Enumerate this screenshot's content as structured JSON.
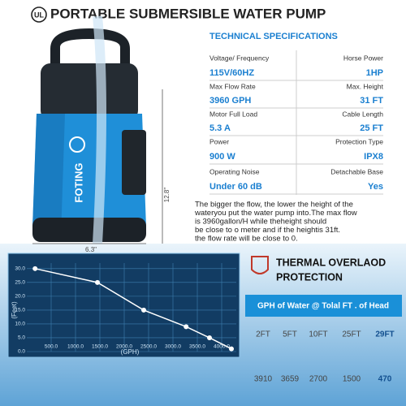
{
  "header": {
    "logo": "UL",
    "title": "PORTABLE SUBMERSIBLE WATER PUMP"
  },
  "product": {
    "brand": "FOTING",
    "height": "12.8\"",
    "width": "6.3\""
  },
  "specs": {
    "heading": "TECHNICAL SPECIFICATIONS",
    "rows": [
      [
        "Voltage/ Frequency",
        "Horse Power"
      ],
      [
        "115V/60HZ",
        "1HP"
      ],
      [
        "Max Flow Rate",
        "Max. Height"
      ],
      [
        "3960 GPH",
        "31 FT"
      ],
      [
        "Motor Full Load",
        "Cable Length"
      ],
      [
        "5.3 A",
        "25 FT"
      ],
      [
        "Power",
        "Protection Type"
      ],
      [
        "900 W",
        "IPX8"
      ],
      [
        "Operating Noise",
        "Detachable Base"
      ],
      [
        "Under 60 dB",
        "Yes"
      ]
    ]
  },
  "note": {
    "lines": [
      "The bigger the flow, the lower the height of the",
      "wateryou put the water pump into.The max flow",
      "is 3960gallon/H while theheight should",
      "be close to o meter and if the heightis 31ft.",
      "the flow rate will be close to 0."
    ]
  },
  "chart_data": {
    "type": "line",
    "x_label": "(GPH)",
    "y_label": "(Feet)",
    "x": [
      170,
      1450,
      2400,
      3270,
      3750,
      4200
    ],
    "values": [
      30,
      25,
      15,
      9,
      5,
      1
    ],
    "color": "#ffffff",
    "xlim": [
      0,
      4300
    ],
    "ylim": [
      0,
      32
    ],
    "xticks": [
      {
        "value": 500,
        "label": "500.0"
      },
      {
        "value": 1000,
        "label": "1000.0"
      },
      {
        "value": 1500,
        "label": "1500.0"
      },
      {
        "value": 2000,
        "label": "2000.0"
      },
      {
        "value": 2500,
        "label": "2500.0"
      },
      {
        "value": 3000,
        "label": "3000.0"
      },
      {
        "value": 3500,
        "label": "3500.0"
      },
      {
        "value": 4000,
        "label": "4000.0"
      }
    ],
    "yticks": [
      {
        "value": 0,
        "label": "0.0"
      },
      {
        "value": 5,
        "label": "5.0"
      },
      {
        "value": 10,
        "label": "10.0"
      },
      {
        "value": 15,
        "label": "15.0"
      },
      {
        "value": 20,
        "label": "20.0"
      },
      {
        "value": 25,
        "label": "25.0"
      },
      {
        "value": 30,
        "label": "30.0"
      }
    ],
    "grid": true
  },
  "thermal": {
    "lines": [
      "THERMAL OVERLAOD",
      "PROTECTION"
    ]
  },
  "table": {
    "header": "GPH of Water @ Tolal FT . of Head",
    "rows": [
      [
        "2FT",
        "5FT",
        "10FT",
        "25FT",
        "29FT"
      ],
      [
        "3910",
        "3659",
        "2700",
        "1500",
        "470"
      ]
    ]
  }
}
